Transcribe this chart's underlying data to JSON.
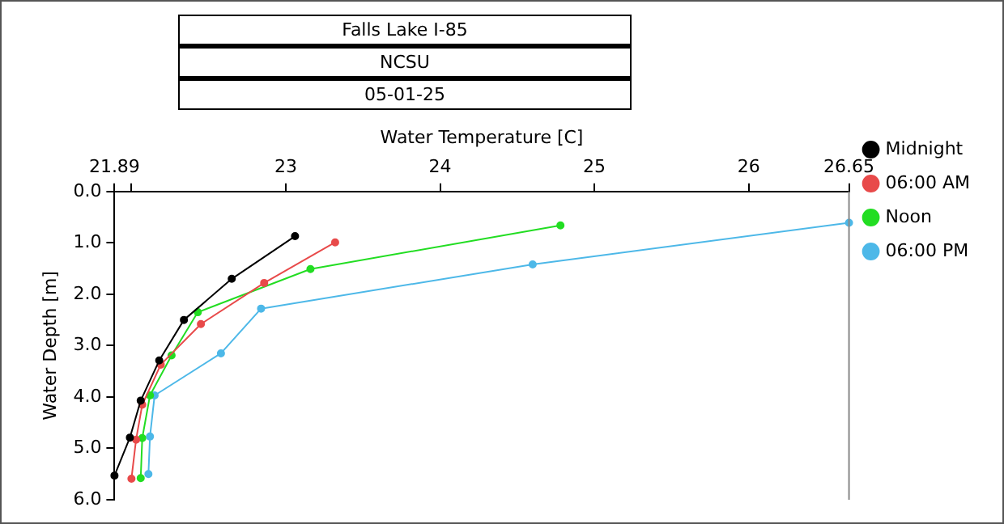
{
  "chart_data": {
    "type": "line",
    "title": "Falls Lake I-85",
    "subtitle": "NCSU",
    "annotations": [
      "05-01-25"
    ],
    "xlabel": "Water Temperature [C]",
    "ylabel": "Water Depth [m]",
    "xlim": [
      21.89,
      26.65
    ],
    "xticks": [
      21.89,
      {
        "value": 22,
        "label": null
      },
      23,
      24,
      25,
      26,
      26.65
    ],
    "ylim": [
      6.0,
      0.0
    ],
    "yticks": [
      {
        "value": 0,
        "label": "0.0"
      },
      {
        "value": 1,
        "label": "1.0"
      },
      {
        "value": 2,
        "label": "2.0"
      },
      {
        "value": 3,
        "label": "3.0"
      },
      {
        "value": 4,
        "label": "4.0"
      },
      {
        "value": 5,
        "label": "5.0"
      },
      {
        "value": 6,
        "label": "6.0"
      }
    ],
    "grid": false,
    "legend": "top right",
    "marker": "circle",
    "line_style": "solid",
    "series": [
      {
        "name": "Midnight",
        "color": "#000000",
        "x": [
          23.06,
          22.65,
          22.34,
          22.18,
          22.06,
          21.99,
          21.89
        ],
        "values": [
          0.87,
          1.7,
          2.5,
          3.29,
          4.07,
          4.79,
          5.53
        ]
      },
      {
        "name": "06:00 AM",
        "color": "#e84a4a",
        "x": [
          23.32,
          22.86,
          22.45,
          22.19,
          22.07,
          22.03,
          22.0
        ],
        "values": [
          0.99,
          1.78,
          2.58,
          3.37,
          4.15,
          4.83,
          5.59
        ]
      },
      {
        "name": "Noon",
        "color": "#22dd22",
        "x": [
          24.78,
          23.16,
          22.43,
          22.26,
          22.12,
          22.07,
          22.06
        ],
        "values": [
          0.66,
          1.51,
          2.35,
          3.19,
          3.97,
          4.8,
          5.58
        ]
      },
      {
        "name": "06:00 PM",
        "color": "#4db8e8",
        "x": [
          26.65,
          24.6,
          22.84,
          22.58,
          22.15,
          22.12,
          22.11
        ],
        "values": [
          0.61,
          1.42,
          2.28,
          3.15,
          3.97,
          4.77,
          5.5
        ]
      }
    ]
  }
}
